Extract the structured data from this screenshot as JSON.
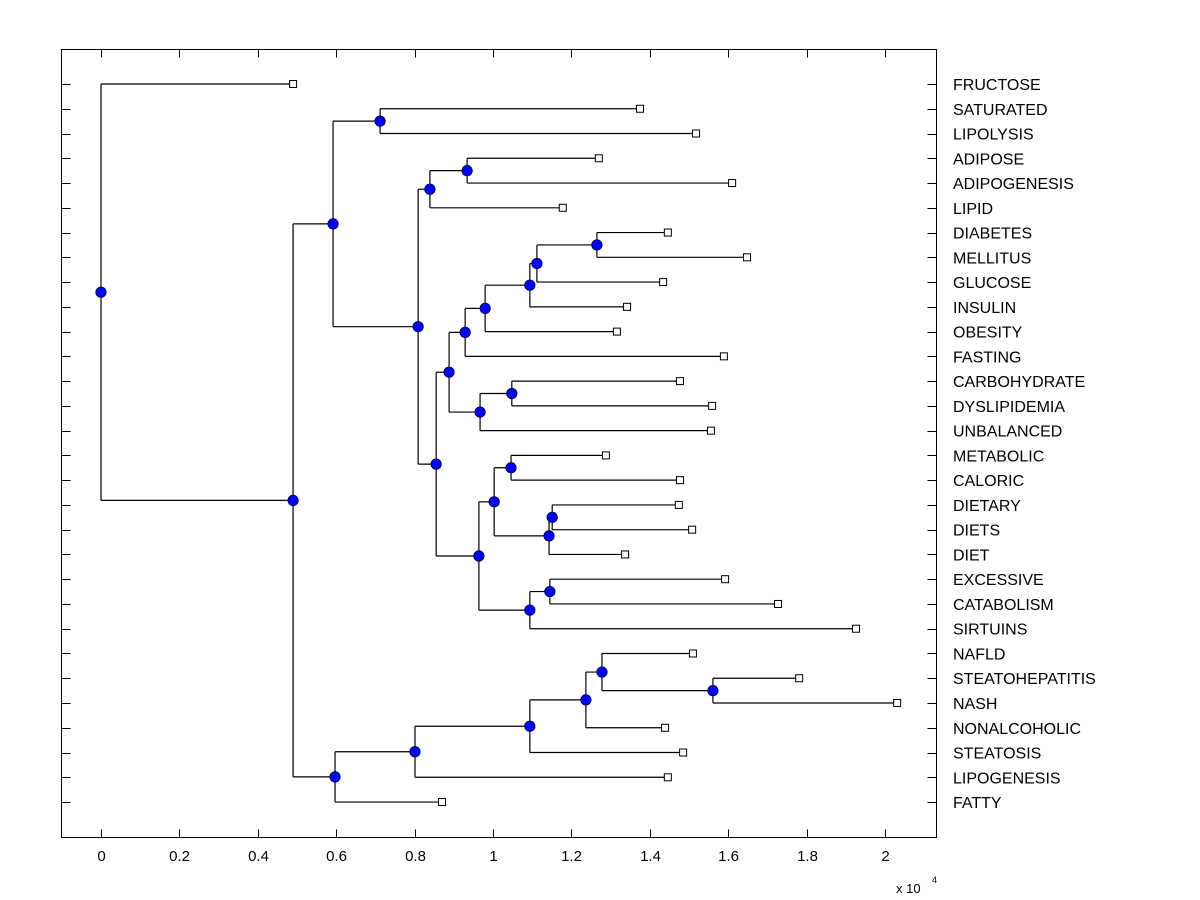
{
  "chart_data": {
    "type": "dendrogram",
    "title": "",
    "xlabel": "",
    "ylabel": "",
    "x_multiplier_label": "x 10",
    "x_multiplier_exponent": "4",
    "xlim": [
      -0.1,
      2.13
    ],
    "x_ticks": [
      0,
      0.2,
      0.4,
      0.6,
      0.8,
      1,
      1.2,
      1.4,
      1.6,
      1.8,
      2
    ],
    "x_tick_labels": [
      "0",
      "0.2",
      "0.4",
      "0.6",
      "0.8",
      "1",
      "1.2",
      "1.4",
      "1.6",
      "1.8",
      "2"
    ],
    "grid": false,
    "colors": {
      "internal_node": "#0000ff",
      "leaf_node": "#ffffff",
      "line": "#000000"
    },
    "leaves": [
      {
        "label": "FRUCTOSE",
        "x": 0.49
      },
      {
        "label": "SATURATED",
        "x": 1.375
      },
      {
        "label": "LIPOLYSIS",
        "x": 1.518
      },
      {
        "label": "ADIPOSE",
        "x": 1.27
      },
      {
        "label": "ADIPOGENESIS",
        "x": 1.61
      },
      {
        "label": "LIPID",
        "x": 1.178
      },
      {
        "label": "DIABETES",
        "x": 1.446
      },
      {
        "label": "MELLITUS",
        "x": 1.648
      },
      {
        "label": "GLUCOSE",
        "x": 1.434
      },
      {
        "label": "INSULIN",
        "x": 1.342
      },
      {
        "label": "OBESITY",
        "x": 1.316
      },
      {
        "label": "FASTING",
        "x": 1.589
      },
      {
        "label": "CARBOHYDRATE",
        "x": 1.477
      },
      {
        "label": "DYSLIPIDEMIA",
        "x": 1.559
      },
      {
        "label": "UNBALANCED",
        "x": 1.556
      },
      {
        "label": "METABOLIC",
        "x": 1.288
      },
      {
        "label": "CALORIC",
        "x": 1.477
      },
      {
        "label": "DIETARY",
        "x": 1.474
      },
      {
        "label": "DIETS",
        "x": 1.508
      },
      {
        "label": "DIET",
        "x": 1.337
      },
      {
        "label": "EXCESSIVE",
        "x": 1.592
      },
      {
        "label": "CATABOLISM",
        "x": 1.727
      },
      {
        "label": "SIRTUINS",
        "x": 1.926
      },
      {
        "label": "NAFLD",
        "x": 1.51
      },
      {
        "label": "STEATOHEPATITIS",
        "x": 1.781
      },
      {
        "label": "NASH",
        "x": 2.031
      },
      {
        "label": "NONALCOHOLIC",
        "x": 1.439
      },
      {
        "label": "STEATOSIS",
        "x": 1.485
      },
      {
        "label": "LIPOGENESIS",
        "x": 1.446
      },
      {
        "label": "FATTY",
        "x": 0.87
      }
    ],
    "nodes": [
      {
        "id": "n_root",
        "x": 0.0,
        "children": [
          "L0",
          "n_a"
        ]
      },
      {
        "id": "n_a",
        "x": 0.49,
        "children": [
          "n_b",
          "n_fat"
        ]
      },
      {
        "id": "n_b",
        "x": 0.592,
        "children": [
          "n_sat",
          "n_c"
        ]
      },
      {
        "id": "n_sat",
        "x": 0.712,
        "children": [
          "L1",
          "L2"
        ]
      },
      {
        "id": "n_c",
        "x": 0.809,
        "children": [
          "n_adi",
          "n_d"
        ]
      },
      {
        "id": "n_adi",
        "x": 0.839,
        "children": [
          "n_adi2",
          "L5"
        ]
      },
      {
        "id": "n_adi2",
        "x": 0.934,
        "children": [
          "L3",
          "L4"
        ]
      },
      {
        "id": "n_d",
        "x": 0.855,
        "children": [
          "n_e",
          "n_met"
        ]
      },
      {
        "id": "n_e",
        "x": 0.888,
        "children": [
          "n_f",
          "n_carb"
        ]
      },
      {
        "id": "n_f",
        "x": 0.929,
        "children": [
          "n_g",
          "L11"
        ]
      },
      {
        "id": "n_g",
        "x": 0.98,
        "children": [
          "n_h",
          "L10"
        ]
      },
      {
        "id": "n_h",
        "x": 1.094,
        "children": [
          "n_i",
          "L9"
        ]
      },
      {
        "id": "n_i",
        "x": 1.112,
        "children": [
          "n_dia",
          "L8"
        ]
      },
      {
        "id": "n_dia",
        "x": 1.265,
        "children": [
          "L6",
          "L7"
        ]
      },
      {
        "id": "n_carb",
        "x": 0.967,
        "children": [
          "n_carb2",
          "L14"
        ]
      },
      {
        "id": "n_carb2",
        "x": 1.048,
        "children": [
          "L12",
          "L13"
        ]
      },
      {
        "id": "n_met",
        "x": 0.964,
        "children": [
          "n_m1",
          "n_exc"
        ]
      },
      {
        "id": "n_m1",
        "x": 1.003,
        "children": [
          "n_m2",
          "n_m3"
        ]
      },
      {
        "id": "n_m2",
        "x": 1.046,
        "children": [
          "L15",
          "L16"
        ]
      },
      {
        "id": "n_m3",
        "x": 1.143,
        "children": [
          "n_m4",
          "L19"
        ]
      },
      {
        "id": "n_m4",
        "x": 1.151,
        "children": [
          "L17",
          "L18"
        ]
      },
      {
        "id": "n_exc",
        "x": 1.094,
        "children": [
          "n_exc2",
          "L22"
        ]
      },
      {
        "id": "n_exc2",
        "x": 1.145,
        "children": [
          "L20",
          "L21"
        ]
      },
      {
        "id": "n_fat",
        "x": 0.597,
        "children": [
          "n_f1",
          "L29"
        ]
      },
      {
        "id": "n_f1",
        "x": 0.801,
        "children": [
          "n_f2",
          "L28"
        ]
      },
      {
        "id": "n_f2",
        "x": 1.094,
        "children": [
          "n_f3",
          "L27"
        ]
      },
      {
        "id": "n_f3",
        "x": 1.237,
        "children": [
          "n_f4",
          "L26"
        ]
      },
      {
        "id": "n_f4",
        "x": 1.278,
        "children": [
          "L23",
          "n_f5"
        ]
      },
      {
        "id": "n_f5",
        "x": 1.561,
        "children": [
          "L24",
          "L25"
        ]
      }
    ]
  }
}
